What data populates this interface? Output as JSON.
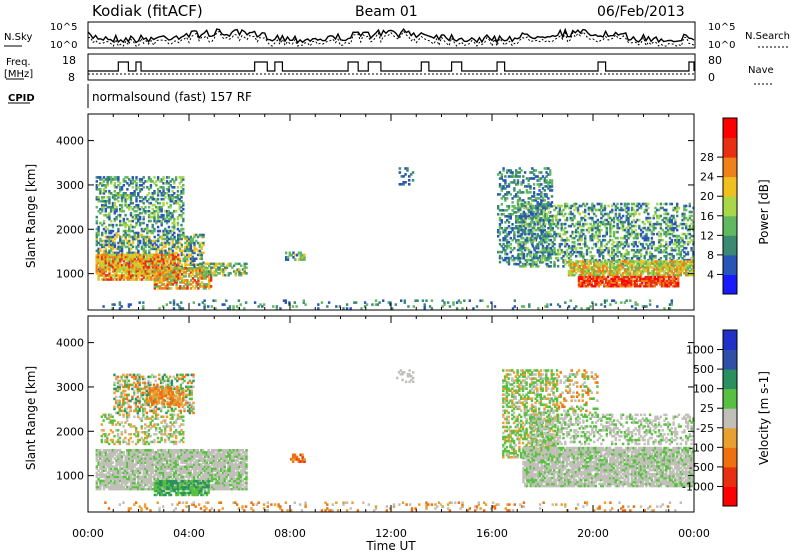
{
  "header": {
    "station": "Kodiak (fitACF)",
    "beam": "Beam 01",
    "date": "06/Feb/2013"
  },
  "noise_panel": {
    "left_label": "N.Sky",
    "right_label": "N.Search",
    "left_ticks": [
      "10^5",
      "10^0"
    ],
    "right_ticks": [
      "10^5",
      "10^0"
    ]
  },
  "freq_panel": {
    "left_label_1": "Freq.",
    "left_label_2": "[MHz]",
    "right_label": "Nave",
    "left_ticks": [
      "18",
      "8"
    ],
    "right_ticks": [
      "80",
      "0"
    ]
  },
  "cpid": {
    "label": "CPID",
    "text": "normalsound (fast) 157 RF"
  },
  "chart_data": [
    {
      "type": "heatmap",
      "title": "Power",
      "ylabel": "Slant Range [km]",
      "xlabel": "Time UT",
      "x_ticks": [
        "00:00",
        "04:00",
        "08:00",
        "12:00",
        "16:00",
        "20:00",
        "00:00"
      ],
      "y_ticks": [
        1000,
        2000,
        3000,
        4000
      ],
      "ylim": [
        180,
        4600
      ],
      "xlim_hours": [
        0,
        24
      ],
      "colorbar": {
        "label": "Power [dB]",
        "ticks": [
          "4",
          "8",
          "12",
          "16",
          "20",
          "24",
          "28"
        ],
        "colors": [
          "#1a1aff",
          "#2a55b8",
          "#3a8a72",
          "#60b860",
          "#a8d848",
          "#f0c020",
          "#f08018",
          "#e83010",
          "#ff0000"
        ]
      }
    },
    {
      "type": "heatmap",
      "title": "Velocity",
      "ylabel": "Slant Range [km]",
      "xlabel": "Time UT",
      "x_ticks": [
        "00:00",
        "04:00",
        "08:00",
        "12:00",
        "16:00",
        "20:00",
        "00:00"
      ],
      "y_ticks": [
        1000,
        2000,
        3000,
        4000
      ],
      "ylim": [
        180,
        4600
      ],
      "xlim_hours": [
        0,
        24
      ],
      "colorbar": {
        "label": "Velocity [m s-1]",
        "ticks": [
          "1000",
          "500",
          "100",
          "25",
          "-25",
          "-100",
          "-500",
          "-1000"
        ],
        "colors": [
          "#2030c8",
          "#3050a8",
          "#2a9060",
          "#58c040",
          "#c0c0b8",
          "#e8a030",
          "#f07010",
          "#e83010",
          "#ff0000"
        ]
      }
    }
  ]
}
